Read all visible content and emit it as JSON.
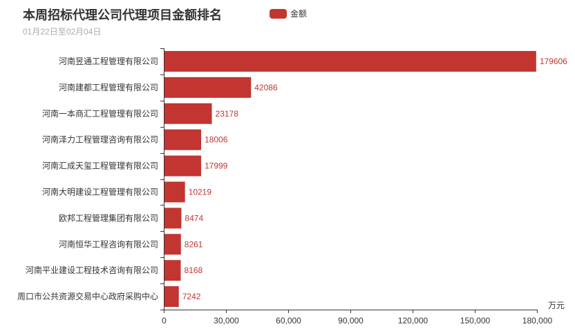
{
  "chart_data": {
    "type": "bar",
    "orientation": "horizontal",
    "title": "本周招标代理公司代理项目金额排名",
    "subtitle": "01月22日至02月04日",
    "legend": [
      "金额"
    ],
    "legend_placement": "top",
    "xlabel": "万元",
    "ylabel": "",
    "xlim": [
      0,
      180000
    ],
    "xticks": [
      "0",
      "30,000",
      "60,000",
      "90,000",
      "120,000",
      "150,000",
      "180,000"
    ],
    "categories": [
      "河南昱通工程管理有限公司",
      "河南建都工程管理有限公司",
      "河南一本商汇工程管理有限公司",
      "河南泽力工程管理咨询有限公司",
      "河南汇成天玺工程管理有限公司",
      "河南大明建设工程管理有限公司",
      "欧邦工程管理集团有限公司",
      "河南恒华工程咨询有限公司",
      "河南平业建设工程技术咨询有限公司",
      "周口市公共资源交易中心政府采购中心"
    ],
    "series": [
      {
        "name": "金额",
        "values": [
          179606,
          42086,
          23178,
          18006,
          17999,
          10219,
          8474,
          8261,
          8168,
          7242
        ]
      }
    ],
    "color": "#c23531",
    "grid": false
  }
}
